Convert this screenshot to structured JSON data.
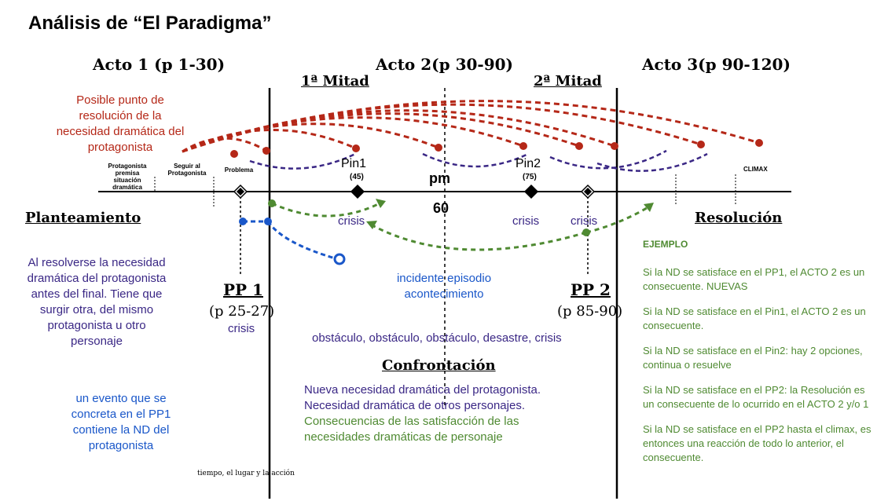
{
  "title": "Análisis de “El Paradigma”",
  "acts": {
    "acto1": "Acto 1 (p 1-30)",
    "acto2": "Acto 2(p 30-90)",
    "acto3": "Acto 3(p 90-120)",
    "mitad1": "1ª Mitad",
    "mitad2": "2ª Mitad"
  },
  "red_note": "Posible punto de resolución de la necesidad dramática del protagonista",
  "timeline_labels": {
    "protagonista": "Protagonista premisa situación dramática",
    "seguir": "Seguir al Protagonista",
    "problema": "Problema",
    "pin1": "Pin1",
    "pin1_page": "(45)",
    "pm": "pm",
    "pm_page": "60",
    "pin2": "Pin2",
    "pin2_page": "(75)",
    "climax": "CLIMAX"
  },
  "sections": {
    "planteamiento": "Planteamiento",
    "confrontacion": "Confrontación",
    "resolucion": "Resolución"
  },
  "pp1": {
    "title": "PP 1",
    "pages": "(p 25-27)",
    "crisis": "crisis"
  },
  "pp2": {
    "title": "PP 2",
    "pages": "(p 85-90)"
  },
  "crisis_labels": [
    "crisis",
    "crisis",
    "crisis"
  ],
  "incidente": "incidente episodio acontecimiento",
  "obstaculos": "obstáculo, obstáculo, obstáculo, desastre, crisis",
  "left_purple": "Al resolverse la necesidad dramática del protagonista antes del final. Tiene que surgir otra, del mismo protagonista u otro personaje",
  "left_blue": "un evento que se concreta en el PP1 contiene la ND del protagonista",
  "footer_note": "tiempo, el lugar y la acción",
  "confront_lines": {
    "purple1": "Nueva necesidad dramática del protagonista.",
    "purple2": "Necesidad dramática de otros personajes.",
    "green1": "Consecuencias de las satisfacción de las",
    "green2": "necesidades dramáticas de personaje"
  },
  "ejemplo": {
    "heading": "EJEMPLO",
    "items": [
      "Si la ND se satisface en el PP1, el ACTO 2 es un consecuente. NUEVAS",
      "Si la ND se satisface en el Pin1, el ACTO 2 es un consecuente.",
      "Si la ND se satisface en el Pin2: hay 2 opciones, continua o resuelve",
      "Si la ND se satisface en el PP2: la Resolución es un consecuente de lo ocurrido en el ACTO 2 y/o 1",
      "Si la ND se satisface en el PP2 hasta el climax, es entonces una reacción de todo lo anterior,  el consecuente."
    ]
  },
  "colors": {
    "red": "#b52818",
    "purple": "#3a2785",
    "blue": "#1a57c9",
    "green": "#4f8a32"
  }
}
